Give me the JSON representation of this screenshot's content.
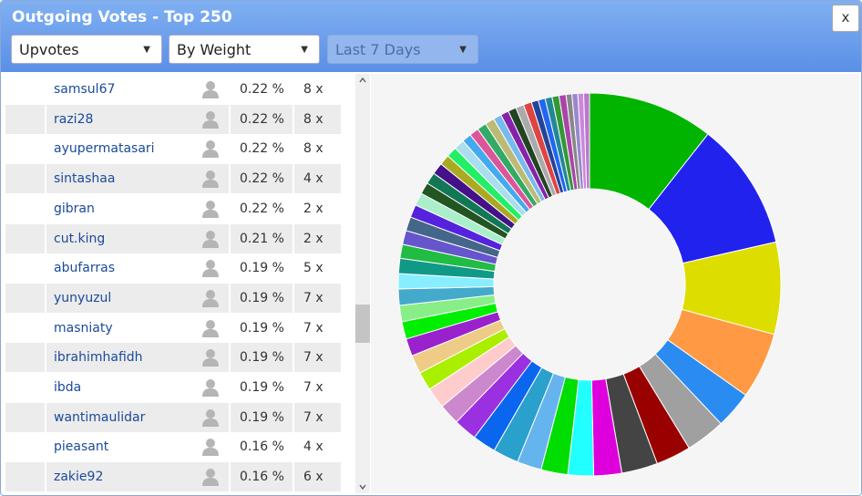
{
  "header": {
    "title": "Outgoing Votes - Top 250",
    "close": "x",
    "dropdowns": [
      "Upvotes",
      "By Weight",
      "Last 7 Days"
    ]
  },
  "table": {
    "rows": [
      [
        "samsul67",
        "0.22 %",
        "8 x"
      ],
      [
        "razi28",
        "0.22 %",
        "8 x"
      ],
      [
        "ayupermatasari",
        "0.22 %",
        "8 x"
      ],
      [
        "sintashaa",
        "0.22 %",
        "4 x"
      ],
      [
        "gibran",
        "0.22 %",
        "2 x"
      ],
      [
        "cut.king",
        "0.21 %",
        "2 x"
      ],
      [
        "abufarras",
        "0.19 %",
        "5 x"
      ],
      [
        "yunyuzul",
        "0.19 %",
        "7 x"
      ],
      [
        "masniaty",
        "0.19 %",
        "7 x"
      ],
      [
        "ibrahimhafidh",
        "0.19 %",
        "7 x"
      ],
      [
        "ibda",
        "0.19 %",
        "7 x"
      ],
      [
        "wantimaulidar",
        "0.19 %",
        "7 x"
      ],
      [
        "pieasant",
        "0.16 %",
        "4 x"
      ],
      [
        "zakie92",
        "0.16 %",
        "6 x"
      ]
    ]
  },
  "chart_data": {
    "type": "donut",
    "values": [
      10.8,
      11.0,
      7.9,
      5.7,
      3.2,
      3.4,
      3.0,
      3.1,
      2.4,
      2.2,
      2.3,
      2.1,
      2.2,
      2.0,
      2.0,
      1.8,
      1.8,
      1.6,
      1.6,
      1.5,
      1.5,
      1.4,
      1.4,
      1.3,
      1.3,
      1.2,
      1.2,
      1.2,
      1.1,
      1.1,
      1.0,
      1.0,
      1.0,
      0.9,
      0.9,
      0.9,
      0.8,
      0.8,
      0.8,
      0.8,
      0.7,
      0.7,
      0.7,
      0.7,
      0.7,
      0.6,
      0.6,
      0.6,
      0.6,
      0.6,
      0.5,
      0.5,
      0.5,
      0.5
    ],
    "colors": [
      "#00b400",
      "#2222ee",
      "#dddd00",
      "#ff9944",
      "#2a8cf0",
      "#a0a0a0",
      "#990000",
      "#444444",
      "#dd00dd",
      "#22ffff",
      "#00dd00",
      "#66b4ee",
      "#2aa0cc",
      "#0a66ee",
      "#9b30e0",
      "#cc88cc",
      "#ffcccc",
      "#aaee00",
      "#eecc88",
      "#9922cc",
      "#00ee00",
      "#88ee88",
      "#44aacc",
      "#88eeff",
      "#119988",
      "#22bb44",
      "#6655cc",
      "#446688",
      "#5522dd",
      "#aaeecc",
      "#225522",
      "#117755",
      "#441188",
      "#aaaa22",
      "#22ee66",
      "#aaddee",
      "#44aaee",
      "#dd5599",
      "#33aa66",
      "#bbbb77",
      "#77bbee",
      "#8822aa",
      "#224422",
      "#aaaaaa",
      "#dd4444",
      "#224499",
      "#2266ee",
      "#228899",
      "#339933",
      "#aa44aa",
      "#888888",
      "#9988cc",
      "#cc88dd",
      "#bb77cc"
    ]
  }
}
